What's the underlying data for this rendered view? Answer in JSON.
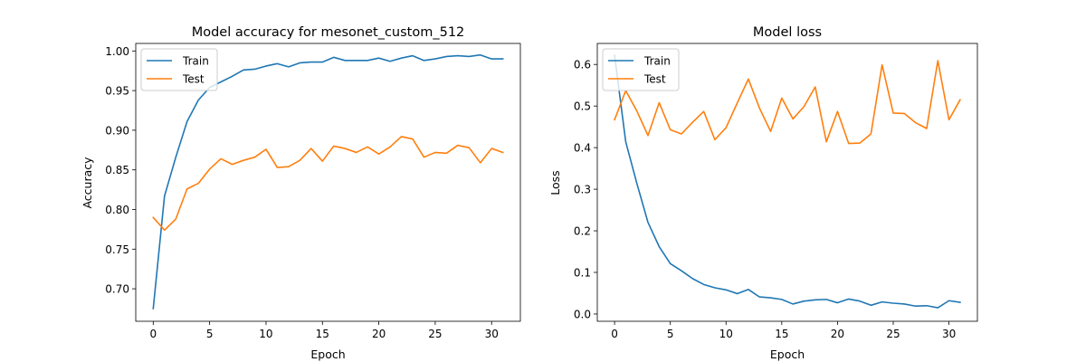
{
  "chart_data": [
    {
      "type": "line",
      "title": "Model accuracy for mesonet_custom_512",
      "xlabel": "Epoch",
      "ylabel": "Accuracy",
      "xlim": [
        -1.55,
        32.55
      ],
      "ylim": [
        0.659,
        1.0095
      ],
      "xticks": [
        0,
        5,
        10,
        15,
        20,
        25,
        30
      ],
      "yticks": [
        0.7,
        0.75,
        0.8,
        0.85,
        0.9,
        0.95,
        1.0
      ],
      "ytick_labels": [
        "0.70",
        "0.75",
        "0.80",
        "0.85",
        "0.90",
        "0.95",
        "1.00"
      ],
      "x": [
        0,
        1,
        2,
        3,
        4,
        5,
        6,
        7,
        8,
        9,
        10,
        11,
        12,
        13,
        14,
        15,
        16,
        17,
        18,
        19,
        20,
        21,
        22,
        23,
        24,
        25,
        26,
        27,
        28,
        29,
        30,
        31
      ],
      "legend": "upper left",
      "series": [
        {
          "name": "Train",
          "color": "#1f77b4",
          "values": [
            0.675,
            0.817,
            0.866,
            0.911,
            0.938,
            0.954,
            0.961,
            0.968,
            0.976,
            0.977,
            0.981,
            0.984,
            0.98,
            0.985,
            0.986,
            0.986,
            0.992,
            0.988,
            0.988,
            0.988,
            0.991,
            0.987,
            0.991,
            0.994,
            0.988,
            0.99,
            0.993,
            0.994,
            0.993,
            0.995,
            0.99,
            0.99
          ]
        },
        {
          "name": "Test",
          "color": "#ff7f0e",
          "values": [
            0.79,
            0.774,
            0.788,
            0.826,
            0.833,
            0.851,
            0.864,
            0.857,
            0.862,
            0.866,
            0.876,
            0.853,
            0.854,
            0.862,
            0.877,
            0.861,
            0.88,
            0.877,
            0.872,
            0.879,
            0.87,
            0.879,
            0.892,
            0.889,
            0.866,
            0.872,
            0.871,
            0.881,
            0.878,
            0.859,
            0.877,
            0.872
          ]
        }
      ]
    },
    {
      "type": "line",
      "title": "Model loss",
      "xlabel": "Epoch",
      "ylabel": "Loss",
      "xlim": [
        -1.55,
        32.55
      ],
      "ylim": [
        -0.0175,
        0.6505
      ],
      "xticks": [
        0,
        5,
        10,
        15,
        20,
        25,
        30
      ],
      "yticks": [
        0.0,
        0.1,
        0.2,
        0.3,
        0.4,
        0.5,
        0.6
      ],
      "ytick_labels": [
        "0.0",
        "0.1",
        "0.2",
        "0.3",
        "0.4",
        "0.5",
        "0.6"
      ],
      "x": [
        0,
        1,
        2,
        3,
        4,
        5,
        6,
        7,
        8,
        9,
        10,
        11,
        12,
        13,
        14,
        15,
        16,
        17,
        18,
        19,
        20,
        21,
        22,
        23,
        24,
        25,
        26,
        27,
        28,
        29,
        30,
        31
      ],
      "legend": "upper left",
      "series": [
        {
          "name": "Train",
          "color": "#1f77b4",
          "values": [
            0.622,
            0.414,
            0.314,
            0.22,
            0.162,
            0.121,
            0.104,
            0.085,
            0.071,
            0.063,
            0.058,
            0.049,
            0.059,
            0.041,
            0.039,
            0.035,
            0.024,
            0.031,
            0.034,
            0.035,
            0.027,
            0.036,
            0.031,
            0.021,
            0.029,
            0.026,
            0.024,
            0.019,
            0.02,
            0.015,
            0.032,
            0.028
          ]
        },
        {
          "name": "Test",
          "color": "#ff7f0e",
          "values": [
            0.467,
            0.537,
            0.488,
            0.429,
            0.508,
            0.443,
            0.433,
            0.461,
            0.487,
            0.419,
            0.448,
            0.507,
            0.565,
            0.495,
            0.439,
            0.519,
            0.469,
            0.499,
            0.546,
            0.414,
            0.487,
            0.41,
            0.411,
            0.433,
            0.599,
            0.483,
            0.482,
            0.46,
            0.446,
            0.609,
            0.467,
            0.515
          ]
        }
      ]
    }
  ]
}
